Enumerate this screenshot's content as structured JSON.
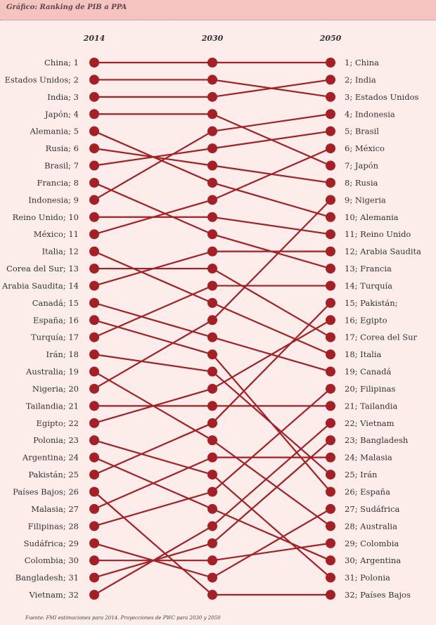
{
  "header": {
    "title": "Gráfico: Ranking de PIB a PPA"
  },
  "footnote": "Fuente: FMI estimaciones para 2014. Proyecciones de PWC para 2030 y 2050",
  "colors": {
    "line": "#a51f24",
    "header": "#f5c3c0",
    "background": "#fcecea"
  },
  "chart_data": {
    "type": "slope",
    "title": "Ranking de PIB a PPA",
    "years": [
      "2014",
      "2030",
      "2050"
    ],
    "series": [
      {
        "name": "China",
        "ranks": [
          1,
          1,
          1
        ]
      },
      {
        "name": "Estados Unidos",
        "ranks": [
          2,
          2,
          3
        ]
      },
      {
        "name": "India",
        "ranks": [
          3,
          3,
          2
        ]
      },
      {
        "name": "Japón",
        "ranks": [
          4,
          4,
          7
        ]
      },
      {
        "name": "Alemania",
        "ranks": [
          5,
          8,
          10
        ]
      },
      {
        "name": "Rusia",
        "ranks": [
          6,
          7,
          8
        ]
      },
      {
        "name": "Brasil",
        "ranks": [
          7,
          6,
          5
        ]
      },
      {
        "name": "Francia",
        "ranks": [
          8,
          11,
          13
        ]
      },
      {
        "name": "Indonesia",
        "ranks": [
          9,
          5,
          4
        ]
      },
      {
        "name": "Reino Unido",
        "ranks": [
          10,
          10,
          11
        ]
      },
      {
        "name": "México",
        "ranks": [
          11,
          9,
          6
        ]
      },
      {
        "name": "Italia",
        "ranks": [
          12,
          15,
          18
        ]
      },
      {
        "name": "Corea del Sur",
        "ranks": [
          13,
          13,
          17
        ]
      },
      {
        "name": "Arabia Saudita",
        "ranks": [
          14,
          12,
          12
        ]
      },
      {
        "name": "Canadá",
        "ranks": [
          15,
          17,
          19
        ]
      },
      {
        "name": "España",
        "ranks": [
          16,
          18,
          26
        ]
      },
      {
        "name": "Turquía",
        "ranks": [
          17,
          14,
          14
        ]
      },
      {
        "name": "Irán",
        "ranks": [
          18,
          19,
          25
        ]
      },
      {
        "name": "Australia",
        "ranks": [
          19,
          23,
          28
        ]
      },
      {
        "name": "Nigeria",
        "ranks": [
          20,
          16,
          9
        ]
      },
      {
        "name": "Tailandia",
        "ranks": [
          21,
          21,
          21
        ]
      },
      {
        "name": "Egipto",
        "ranks": [
          22,
          20,
          16
        ]
      },
      {
        "name": "Polonia",
        "ranks": [
          23,
          25,
          31
        ]
      },
      {
        "name": "Argentina",
        "ranks": [
          24,
          27,
          30
        ]
      },
      {
        "name": "Pakistán",
        "ranks": [
          25,
          22,
          15
        ]
      },
      {
        "name": "Países Bajos",
        "ranks": [
          26,
          32,
          32
        ]
      },
      {
        "name": "Malasia",
        "ranks": [
          27,
          24,
          24
        ]
      },
      {
        "name": "Filipinas",
        "ranks": [
          28,
          26,
          20
        ]
      },
      {
        "name": "Sudáfrica",
        "ranks": [
          29,
          31,
          27
        ]
      },
      {
        "name": "Colombia",
        "ranks": [
          30,
          30,
          29
        ]
      },
      {
        "name": "Bangladesh",
        "ranks": [
          31,
          29,
          23
        ]
      },
      {
        "name": "Vietnam",
        "ranks": [
          32,
          28,
          22
        ]
      }
    ],
    "left_labels": [
      "China; 1",
      "Estados Unidos; 2",
      "India; 3",
      "Japón; 4",
      "Alemania; 5",
      "Rusia; 6",
      "Brasil; 7",
      "Francia; 8",
      "Indonesia; 9",
      "Reino Unido; 10",
      "México; 11",
      "Italia; 12",
      "Corea del Sur; 13",
      "Arabia Saudita; 14",
      "Canadá; 15",
      "España; 16",
      "Turquía; 17",
      "Irán; 18",
      "Australia; 19",
      "Nigeria; 20",
      "Tailandia; 21",
      "Egipto; 22",
      "Polonia; 23",
      "Argentina; 24",
      "Pakistán; 25",
      "Países Bajos; 26",
      "Malasia; 27",
      "Filipinas; 28",
      "Sudáfrica; 29",
      "Colombia; 30",
      "Bangladesh; 31",
      "Vietnam; 32"
    ],
    "right_labels": [
      "1; China",
      "2; India",
      "3; Estados Unidos",
      "4; Indonesia",
      "5; Brasil",
      "6; México",
      "7; Japón",
      "8; Rusia",
      "9; Nigeria",
      "10; Alemania",
      "11; Reino Unido",
      "12; Arabia Saudita",
      "13; Francia",
      "14; Turquía",
      "15; Pakistán;",
      "16; Egipto",
      "17; Corea del Sur",
      "18; Italia",
      "19; Canadá",
      "20; Filipinas",
      "21; Tailandia",
      "22; Vietnam",
      "23; Bangladesh",
      "24; Malasia",
      "25; Irán",
      "26; España",
      "27; Sudáfrica",
      "28; Australia",
      "29; Colombia",
      "30; Argentina",
      "31; Polonia",
      "32; Países Bajos"
    ]
  }
}
